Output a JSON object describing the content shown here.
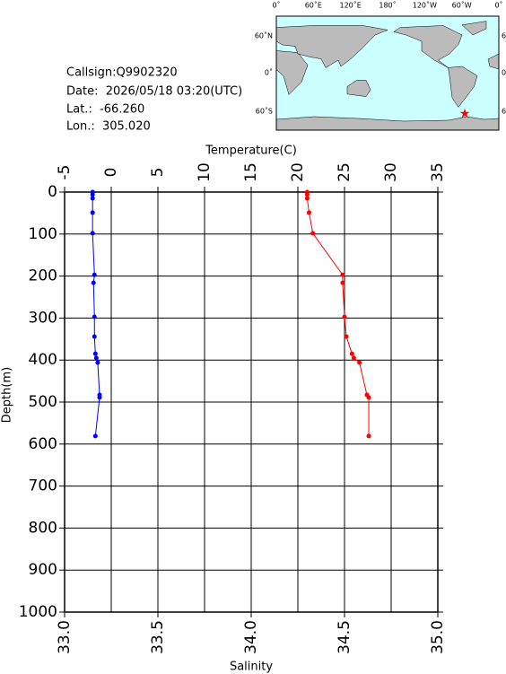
{
  "info": {
    "callsign": "Callsign:Q9902320",
    "date": "Date:  2026/05/18 03:20(UTC)",
    "lat": "Lat.:  -66.260",
    "lon": "Lon.:  305.020"
  },
  "map": {
    "lon_labels": [
      "0˚",
      "60˚E",
      "120˚E",
      "180˚",
      "120˚W",
      "60˚W",
      "0˚"
    ],
    "lat_labels": [
      "60˚N",
      "0˚",
      "60˚S"
    ]
  },
  "chart_data": {
    "type": "profile",
    "x2label": "Temperature(C)",
    "xlabel": "Salinity",
    "ylabel": "Depth(m)",
    "depth": [
      0,
      6,
      15,
      49,
      98,
      197,
      216,
      297,
      344,
      385,
      395,
      406,
      483,
      489,
      581
    ],
    "series": [
      {
        "axis": "x2",
        "color": "#0000ff",
        "values": [
          -2.0,
          -2.0,
          -2.0,
          -2.0,
          -2.0,
          -1.8,
          -1.9,
          -1.8,
          -1.8,
          -1.7,
          -1.6,
          -1.45,
          -1.25,
          -1.25,
          -1.7
        ]
      },
      {
        "axis": "x",
        "color": "#ff0000",
        "values": [
          34.3,
          34.3,
          34.3,
          34.31,
          34.33,
          34.49,
          34.49,
          34.5,
          34.51,
          34.54,
          34.55,
          34.58,
          34.62,
          34.63,
          34.63
        ]
      }
    ],
    "x2lim": [
      -5,
      35
    ],
    "x2ticks": [
      -5,
      0,
      5,
      10,
      15,
      20,
      25,
      30,
      35
    ],
    "xlim": [
      33.0,
      35.0
    ],
    "xticks": [
      {
        "value": 33.0,
        "label": "33.0"
      },
      {
        "value": 33.5,
        "label": "33.5"
      },
      {
        "value": 34.0,
        "label": "34.0"
      },
      {
        "value": 34.5,
        "label": "34.5"
      },
      {
        "value": 35.0,
        "label": "35.0"
      }
    ],
    "ylim": [
      0,
      1000
    ],
    "yticks": [
      0,
      100,
      200,
      300,
      400,
      500,
      600,
      700,
      800,
      900,
      1000
    ],
    "grid": true
  }
}
